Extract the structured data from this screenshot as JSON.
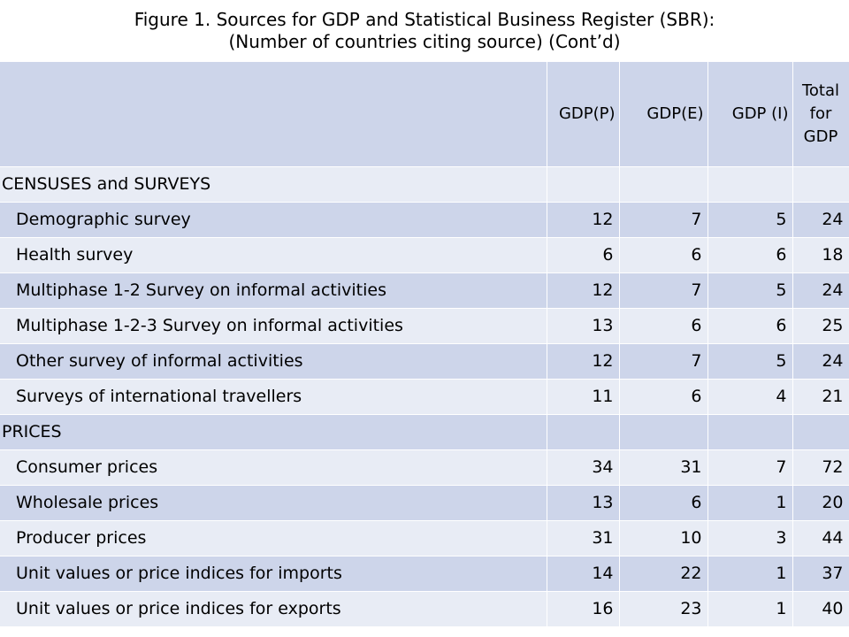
{
  "figure": {
    "title_line1": "Figure 1. Sources for GDP and Statistical Business Register (SBR):",
    "title_line2": "(Number of countries citing source) (Cont’d)"
  },
  "table": {
    "headers": [
      "",
      "GDP(P)",
      "GDP(E)",
      "GDP (I)",
      "Total for GDP"
    ],
    "rows": [
      {
        "type": "section",
        "label": "CENSUSES and SURVEYS",
        "values": [
          "",
          "",
          "",
          ""
        ]
      },
      {
        "type": "data",
        "label": "Demographic survey",
        "values": [
          "12",
          "7",
          "5",
          "24"
        ]
      },
      {
        "type": "data",
        "label": "Health survey",
        "values": [
          "6",
          "6",
          "6",
          "18"
        ]
      },
      {
        "type": "data",
        "label": "Multiphase 1-2 Survey on informal activities",
        "values": [
          "12",
          "7",
          "5",
          "24"
        ]
      },
      {
        "type": "data",
        "label": "Multiphase 1-2-3 Survey on informal activities",
        "values": [
          "13",
          "6",
          "6",
          "25"
        ]
      },
      {
        "type": "data",
        "label": "Other survey of informal activities",
        "values": [
          "12",
          "7",
          "5",
          "24"
        ]
      },
      {
        "type": "data",
        "label": "Surveys of international travellers",
        "values": [
          "11",
          "6",
          "4",
          "21"
        ]
      },
      {
        "type": "section",
        "label": "PRICES",
        "values": [
          "",
          "",
          "",
          ""
        ]
      },
      {
        "type": "data",
        "label": "Consumer prices",
        "values": [
          "34",
          "31",
          "7",
          "72"
        ]
      },
      {
        "type": "data",
        "label": "Wholesale prices",
        "values": [
          "13",
          "6",
          "1",
          "20"
        ]
      },
      {
        "type": "data",
        "label": "Producer prices",
        "values": [
          "31",
          "10",
          "3",
          "44"
        ]
      },
      {
        "type": "data",
        "label": "Unit values or price indices for imports",
        "values": [
          "14",
          "22",
          "1",
          "37"
        ]
      },
      {
        "type": "data",
        "label": "Unit values or price indices for exports",
        "values": [
          "16",
          "23",
          "1",
          "40"
        ]
      }
    ]
  },
  "colors": {
    "header_band": "#cdd5ea",
    "row_light": "#e8ecf5",
    "row_dark": "#cdd5ea"
  }
}
